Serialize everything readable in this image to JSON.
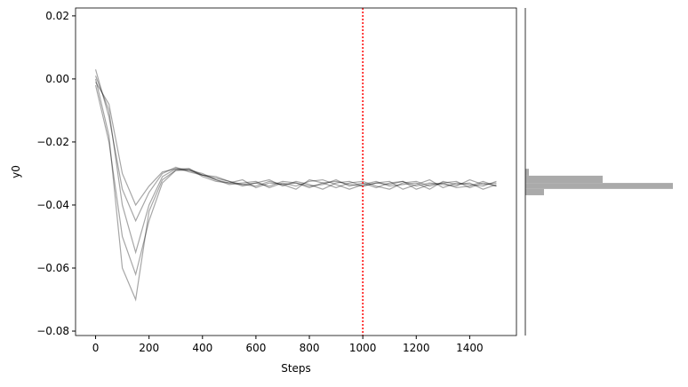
{
  "chart_data": [
    {
      "type": "line",
      "x_label": "Steps",
      "y_label": "y0",
      "x": [
        0,
        50,
        100,
        150,
        200,
        250,
        300,
        350,
        400,
        450,
        500,
        550,
        600,
        650,
        700,
        750,
        800,
        850,
        900,
        950,
        1000,
        1050,
        1100,
        1150,
        1200,
        1250,
        1300,
        1350,
        1400,
        1450,
        1500
      ],
      "line_opacity": 0.35,
      "series": [
        {
          "color": "#000000",
          "values": [
            0.001,
            -0.01,
            -0.04,
            -0.055,
            -0.04,
            -0.031,
            -0.0285,
            -0.029,
            -0.03,
            -0.032,
            -0.033,
            -0.0335,
            -0.033,
            -0.034,
            -0.0325,
            -0.033,
            -0.034,
            -0.0335,
            -0.032,
            -0.034,
            -0.033,
            -0.0345,
            -0.033,
            -0.0325,
            -0.034,
            -0.033,
            -0.0335,
            -0.034,
            -0.032,
            -0.0335,
            -0.033
          ]
        },
        {
          "color": "#000000",
          "values": [
            -0.002,
            -0.02,
            -0.05,
            -0.062,
            -0.045,
            -0.033,
            -0.029,
            -0.0285,
            -0.031,
            -0.0325,
            -0.033,
            -0.032,
            -0.0345,
            -0.033,
            -0.0335,
            -0.035,
            -0.032,
            -0.033,
            -0.0345,
            -0.033,
            -0.0325,
            -0.034,
            -0.035,
            -0.033,
            -0.0325,
            -0.034,
            -0.033,
            -0.0345,
            -0.034,
            -0.0325,
            -0.034
          ]
        },
        {
          "color": "#000000",
          "values": [
            0.003,
            -0.012,
            -0.035,
            -0.045,
            -0.036,
            -0.03,
            -0.028,
            -0.0295,
            -0.0305,
            -0.0315,
            -0.0325,
            -0.034,
            -0.033,
            -0.032,
            -0.034,
            -0.0325,
            -0.0335,
            -0.035,
            -0.033,
            -0.0325,
            -0.034,
            -0.033,
            -0.0325,
            -0.035,
            -0.0335,
            -0.032,
            -0.0345,
            -0.033,
            -0.0335,
            -0.034,
            -0.0325
          ]
        },
        {
          "color": "#000000",
          "values": [
            0.0,
            -0.018,
            -0.06,
            -0.07,
            -0.042,
            -0.032,
            -0.029,
            -0.029,
            -0.0305,
            -0.032,
            -0.0335,
            -0.033,
            -0.0325,
            -0.0345,
            -0.033,
            -0.034,
            -0.0325,
            -0.032,
            -0.0335,
            -0.035,
            -0.0335,
            -0.0325,
            -0.034,
            -0.0335,
            -0.033,
            -0.035,
            -0.0325,
            -0.0335,
            -0.033,
            -0.035,
            -0.0335
          ]
        },
        {
          "color": "#000000",
          "values": [
            -0.001,
            -0.008,
            -0.03,
            -0.04,
            -0.034,
            -0.0295,
            -0.0285,
            -0.0285,
            -0.0305,
            -0.031,
            -0.0325,
            -0.0335,
            -0.034,
            -0.0325,
            -0.0335,
            -0.033,
            -0.0345,
            -0.033,
            -0.0325,
            -0.0335,
            -0.034,
            -0.033,
            -0.0335,
            -0.0325,
            -0.035,
            -0.0335,
            -0.033,
            -0.0325,
            -0.0345,
            -0.033,
            -0.034
          ]
        }
      ],
      "vline": {
        "x": 1000,
        "color": "#ff0000",
        "style": "dotted"
      },
      "xlim": [
        -75,
        1575
      ],
      "ylim": [
        -0.0814,
        0.0225
      ],
      "xticks": [
        0,
        200,
        400,
        600,
        800,
        1000,
        1200,
        1400
      ],
      "yticks": [
        {
          "value": 0.02,
          "label": "0.02"
        },
        {
          "value": 0.0,
          "label": "0.00"
        },
        {
          "value": -0.02,
          "label": "−0.02"
        },
        {
          "value": -0.04,
          "label": "−0.04"
        },
        {
          "value": -0.06,
          "label": "−0.06"
        },
        {
          "value": -0.08,
          "label": "−0.08"
        }
      ]
    },
    {
      "type": "histogram",
      "orientation": "horizontal",
      "color": "#aaaaaa",
      "bins": [
        -0.0369,
        -0.0349,
        -0.033,
        -0.0307,
        -0.0285
      ],
      "values": [
        21,
        166,
        87,
        4
      ],
      "xlim": [
        0,
        166
      ],
      "ylim": [
        -0.0814,
        0.0225
      ]
    }
  ]
}
